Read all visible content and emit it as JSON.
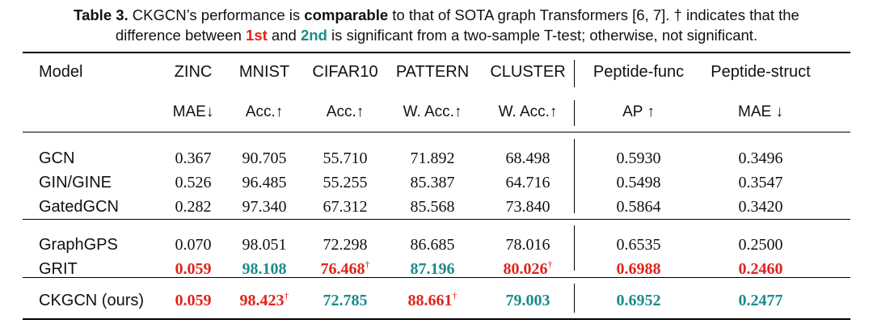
{
  "caption": {
    "label": "Table 3.",
    "text_a": " CKGCN’s performance is ",
    "bold_word": "comparable",
    "text_b": " to that of SOTA graph Transformers [6, 7]. † indicates that the",
    "text_c": "difference between ",
    "first_word": "1st",
    "text_d": " and ",
    "second_word": "2nd",
    "text_e": " is significant from a two-sample T-test; otherwise, not significant."
  },
  "colors": {
    "best": "#e2231a",
    "second": "#1a8c8c"
  },
  "table": {
    "model_header": "Model",
    "columns": [
      {
        "name": "ZINC",
        "metric": "MAE↓"
      },
      {
        "name": "MNIST",
        "metric": "Acc.↑"
      },
      {
        "name": "CIFAR10",
        "metric": "Acc.↑"
      },
      {
        "name": "PATTERN",
        "metric": "W. Acc.↑"
      },
      {
        "name": "CLUSTER",
        "metric": "W. Acc.↑"
      },
      {
        "name": "Peptide-func",
        "metric": "AP ↑"
      },
      {
        "name": "Peptide-struct",
        "metric": "MAE ↓"
      }
    ],
    "groups": [
      {
        "rows": [
          {
            "model": "GCN",
            "cells": [
              {
                "v": "0.367"
              },
              {
                "v": "90.705"
              },
              {
                "v": "55.710"
              },
              {
                "v": "71.892"
              },
              {
                "v": "68.498"
              },
              {
                "v": "0.5930"
              },
              {
                "v": "0.3496"
              }
            ]
          },
          {
            "model": "GIN/GINE",
            "cells": [
              {
                "v": "0.526"
              },
              {
                "v": "96.485"
              },
              {
                "v": "55.255"
              },
              {
                "v": "85.387"
              },
              {
                "v": "64.716"
              },
              {
                "v": "0.5498"
              },
              {
                "v": "0.3547"
              }
            ]
          },
          {
            "model": "GatedGCN",
            "cells": [
              {
                "v": "0.282"
              },
              {
                "v": "97.340"
              },
              {
                "v": "67.312"
              },
              {
                "v": "85.568"
              },
              {
                "v": "73.840"
              },
              {
                "v": "0.5864"
              },
              {
                "v": "0.3420"
              }
            ]
          }
        ]
      },
      {
        "rows": [
          {
            "model": "GraphGPS",
            "cells": [
              {
                "v": "0.070"
              },
              {
                "v": "98.051"
              },
              {
                "v": "72.298"
              },
              {
                "v": "86.685"
              },
              {
                "v": "78.016"
              },
              {
                "v": "0.6535"
              },
              {
                "v": "0.2500"
              }
            ]
          },
          {
            "model": "GRIT",
            "cells": [
              {
                "v": "0.059",
                "s": "best"
              },
              {
                "v": "98.108",
                "s": "second"
              },
              {
                "v": "76.468",
                "s": "best",
                "sup": "†"
              },
              {
                "v": "87.196",
                "s": "second"
              },
              {
                "v": "80.026",
                "s": "best",
                "sup": "†"
              },
              {
                "v": "0.6988",
                "s": "best"
              },
              {
                "v": "0.2460",
                "s": "best"
              }
            ]
          }
        ]
      },
      {
        "rows": [
          {
            "model": "CKGCN (ours)",
            "cells": [
              {
                "v": "0.059",
                "s": "best"
              },
              {
                "v": "98.423",
                "s": "best",
                "sup": "†"
              },
              {
                "v": "72.785",
                "s": "second"
              },
              {
                "v": "88.661",
                "s": "best",
                "sup": "†"
              },
              {
                "v": "79.003",
                "s": "second"
              },
              {
                "v": "0.6952",
                "s": "second"
              },
              {
                "v": "0.2477",
                "s": "second"
              }
            ]
          }
        ]
      }
    ]
  }
}
